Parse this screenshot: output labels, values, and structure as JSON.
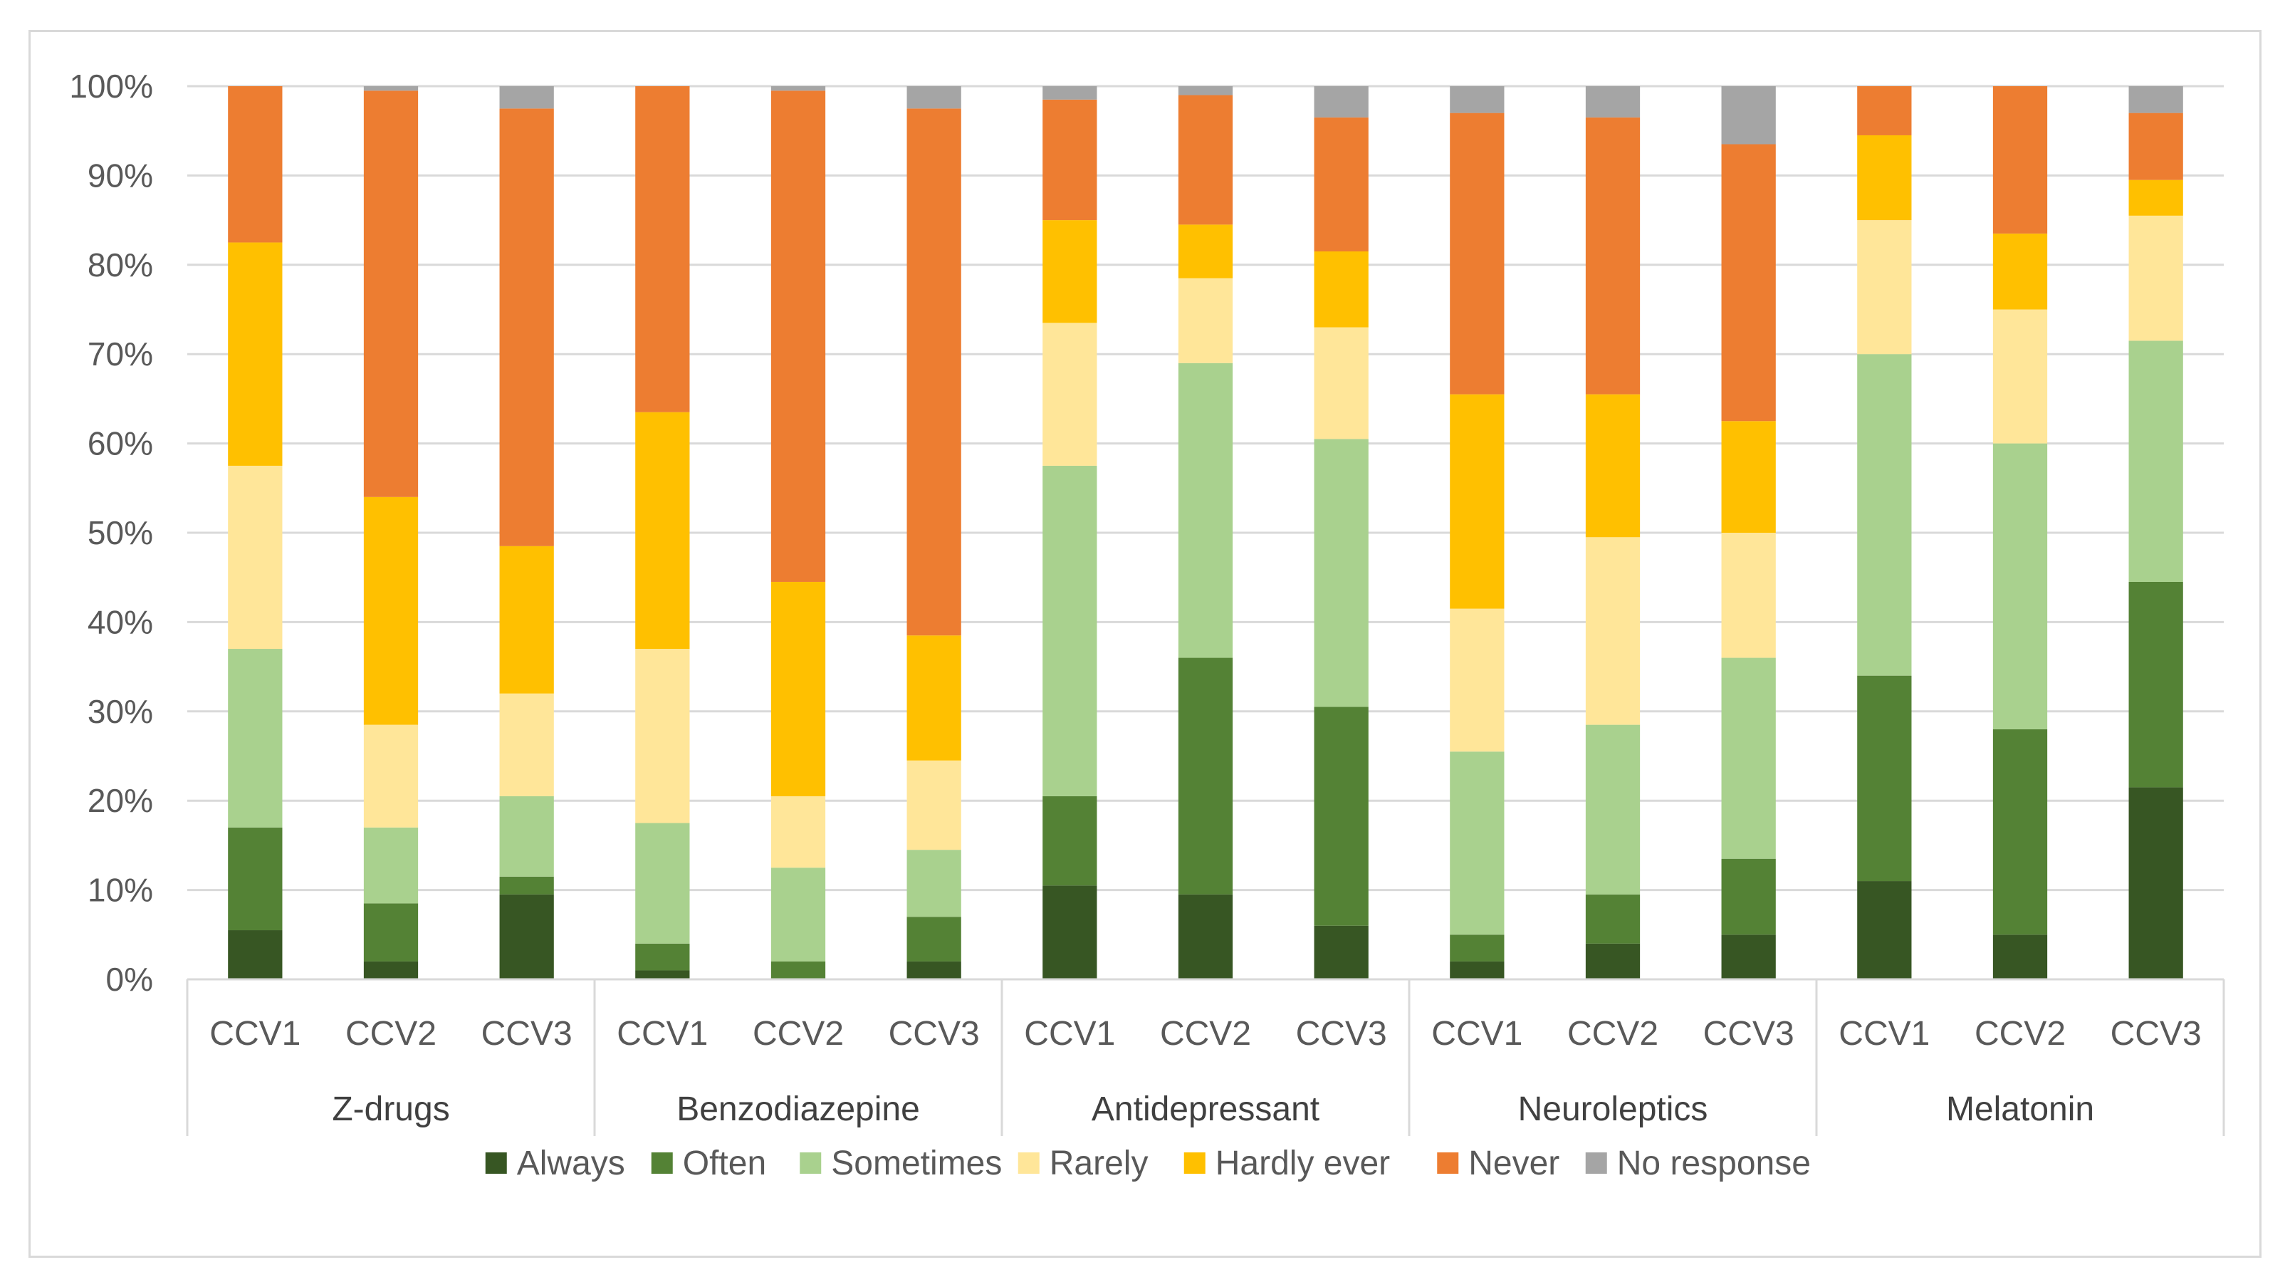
{
  "chart_data": {
    "type": "bar",
    "stacked": true,
    "percent": true,
    "title": "",
    "xlabel": "",
    "ylabel": "",
    "ylim": [
      0,
      100
    ],
    "y_ticks": [
      "0%",
      "10%",
      "20%",
      "30%",
      "40%",
      "50%",
      "60%",
      "70%",
      "80%",
      "90%",
      "100%"
    ],
    "grid": true,
    "legend_position": "bottom",
    "groups": [
      {
        "name": "Z-drugs",
        "categories": [
          "CCV1",
          "CCV2",
          "CCV3"
        ]
      },
      {
        "name": "Benzodiazepine",
        "categories": [
          "CCV1",
          "CCV2",
          "CCV3"
        ]
      },
      {
        "name": "Antidepressant",
        "categories": [
          "CCV1",
          "CCV2",
          "CCV3"
        ]
      },
      {
        "name": "Neuroleptics",
        "categories": [
          "CCV1",
          "CCV2",
          "CCV3"
        ]
      },
      {
        "name": "Melatonin",
        "categories": [
          "CCV1",
          "CCV2",
          "CCV3"
        ]
      }
    ],
    "series": [
      {
        "name": "Always",
        "color": "#375623",
        "values": [
          5.5,
          2,
          9.5,
          1,
          0,
          2,
          10.5,
          9.5,
          6,
          2,
          4,
          5,
          11,
          5,
          21.5
        ]
      },
      {
        "name": "Often",
        "color": "#548235",
        "values": [
          11.5,
          6.5,
          2,
          3,
          2,
          5,
          10,
          26.5,
          24.5,
          3,
          5.5,
          8.5,
          23,
          23,
          23
        ]
      },
      {
        "name": "Sometimes",
        "color": "#a9d18e",
        "values": [
          20,
          8.5,
          9,
          13.5,
          10.5,
          7.5,
          37,
          33,
          30,
          20.5,
          19,
          22.5,
          36,
          32,
          27
        ]
      },
      {
        "name": "Rarely",
        "color": "#ffe699",
        "values": [
          20.5,
          11.5,
          11.5,
          19.5,
          8,
          10,
          16,
          9.5,
          12.5,
          16,
          21,
          14,
          15,
          15,
          14
        ]
      },
      {
        "name": "Hardly ever",
        "color": "#ffc000",
        "values": [
          25,
          25.5,
          16.5,
          26.5,
          24,
          14,
          11.5,
          6,
          8.5,
          24,
          16,
          12.5,
          9.5,
          8.5,
          4
        ]
      },
      {
        "name": "Never",
        "color": "#ed7d31",
        "values": [
          17.5,
          45.5,
          49,
          36.5,
          55,
          59,
          13.5,
          14.5,
          15,
          31.5,
          31,
          31,
          5.5,
          16.5,
          7.5
        ]
      },
      {
        "name": "No response",
        "color": "#a5a5a5",
        "values": [
          0,
          0.5,
          2.5,
          0,
          0.5,
          2.5,
          1.5,
          1,
          3.5,
          3,
          3.5,
          6.5,
          0,
          0,
          3
        ]
      }
    ]
  }
}
